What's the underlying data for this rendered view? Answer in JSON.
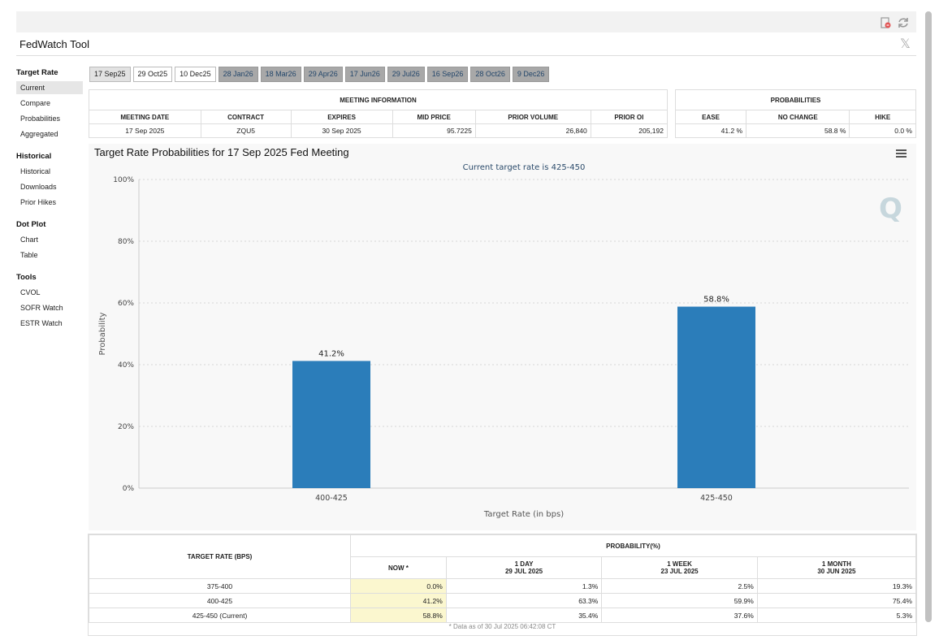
{
  "app": {
    "title": "FedWatch Tool"
  },
  "sidebar": {
    "sections": [
      {
        "title": "Target Rate",
        "items": [
          "Current",
          "Compare",
          "Probabilities",
          "Aggregated"
        ]
      },
      {
        "title": "Historical",
        "items": [
          "Historical",
          "Downloads",
          "Prior Hikes"
        ]
      },
      {
        "title": "Dot Plot",
        "items": [
          "Chart",
          "Table"
        ]
      },
      {
        "title": "Tools",
        "items": [
          "CVOL",
          "SOFR Watch",
          "ESTR Watch"
        ]
      }
    ],
    "active": "Current"
  },
  "tabs": [
    "17 Sep25",
    "29 Oct25",
    "10 Dec25",
    "28 Jan26",
    "18 Mar26",
    "29 Apr26",
    "17 Jun26",
    "29 Jul26",
    "16 Sep26",
    "28 Oct26",
    "9 Dec26"
  ],
  "meeting_info": {
    "header": "MEETING INFORMATION",
    "columns": [
      "MEETING DATE",
      "CONTRACT",
      "EXPIRES",
      "MID PRICE",
      "PRIOR VOLUME",
      "PRIOR OI"
    ],
    "row": [
      "17 Sep 2025",
      "ZQU5",
      "30 Sep 2025",
      "95.7225",
      "26,840",
      "205,192"
    ]
  },
  "probabilities": {
    "header": "PROBABILITIES",
    "columns": [
      "EASE",
      "NO CHANGE",
      "HIKE"
    ],
    "row": [
      "41.2 %",
      "58.8 %",
      "0.0 %"
    ]
  },
  "chart": {
    "title": "Target Rate Probabilities for 17 Sep 2025 Fed Meeting",
    "subtitle": "Current target rate is 425-450",
    "logo": "Q"
  },
  "chart_data": {
    "type": "bar",
    "title": "Target Rate Probabilities for 17 Sep 2025 Fed Meeting",
    "subtitle": "Current target rate is 425-450",
    "categories": [
      "400-425",
      "425-450"
    ],
    "values": [
      41.2,
      58.8
    ],
    "data_labels": [
      "41.2%",
      "58.8%"
    ],
    "xlabel": "Target Rate (in bps)",
    "ylabel": "Probability",
    "ylim": [
      0,
      100
    ],
    "yticks": [
      "0%",
      "20%",
      "40%",
      "60%",
      "80%",
      "100%"
    ],
    "grid": true,
    "color": "#2b7dba"
  },
  "bottom_table": {
    "rate_header": "TARGET RATE (BPS)",
    "prob_header": "PROBABILITY(%)",
    "columns": [
      {
        "line1": "NOW *",
        "line2": ""
      },
      {
        "line1": "1 DAY",
        "line2": "29 JUL 2025"
      },
      {
        "line1": "1 WEEK",
        "line2": "23 JUL 2025"
      },
      {
        "line1": "1 MONTH",
        "line2": "30 JUN 2025"
      }
    ],
    "rows": [
      {
        "rate": "375-400",
        "values": [
          "0.0%",
          "1.3%",
          "2.5%",
          "19.3%"
        ]
      },
      {
        "rate": "400-425",
        "values": [
          "41.2%",
          "63.3%",
          "59.9%",
          "75.4%"
        ]
      },
      {
        "rate": "425-450 (Current)",
        "values": [
          "58.8%",
          "35.4%",
          "37.6%",
          "5.3%"
        ]
      }
    ],
    "note": "* Data as of 30 Jul 2025 06:42:08 CT"
  }
}
